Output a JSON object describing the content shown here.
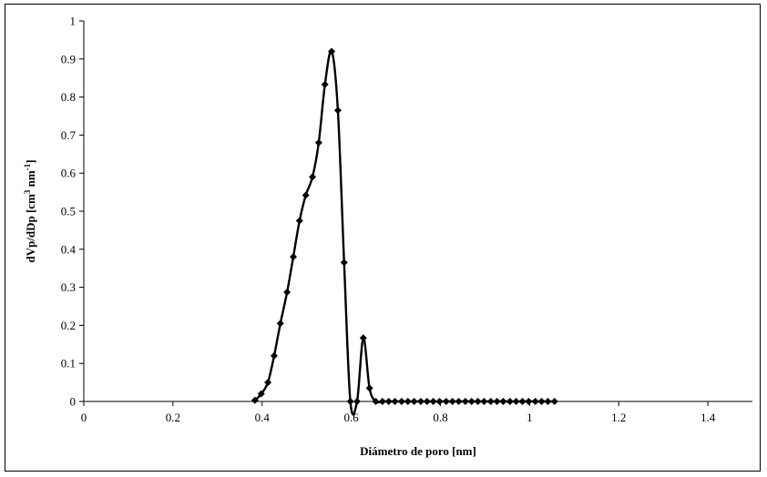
{
  "chart_data": {
    "type": "scatter",
    "title": "",
    "xlabel": "Diámetro de poro [nm]",
    "ylabel": {
      "main": "dVp/dDp [cm",
      "sup1": "3",
      "mid": " nm",
      "sup2": "-1",
      "end": "]"
    },
    "xlim": [
      0,
      1.5
    ],
    "ylim": [
      0,
      1
    ],
    "x_ticks": [
      "0",
      "0.2",
      "0.4",
      "0.6",
      "0.8",
      "1",
      "1.2",
      "1.4"
    ],
    "x_tick_values": [
      0,
      0.2,
      0.4,
      0.6,
      0.8,
      1.0,
      1.2,
      1.4
    ],
    "y_ticks": [
      "0",
      "0.1",
      "0.2",
      "0.3",
      "0.4",
      "0.5",
      "0.6",
      "0.7",
      "0.8",
      "0.9",
      "1"
    ],
    "y_tick_values": [
      0,
      0.1,
      0.2,
      0.3,
      0.4,
      0.5,
      0.6,
      0.7,
      0.8,
      0.9,
      1.0
    ],
    "grid": false,
    "legend": "none",
    "series": [
      {
        "marker": "diamond",
        "line": "smooth",
        "color": "#000000",
        "x": [
          0.384,
          0.398,
          0.413,
          0.427,
          0.441,
          0.456,
          0.47,
          0.484,
          0.498,
          0.513,
          0.527,
          0.541,
          0.556,
          0.57,
          0.584,
          0.598,
          0.613,
          0.627,
          0.641,
          0.655,
          0.67,
          0.684,
          0.698,
          0.713,
          0.727,
          0.741,
          0.756,
          0.77,
          0.784,
          0.798,
          0.813,
          0.827,
          0.841,
          0.856,
          0.87,
          0.884,
          0.898,
          0.913,
          0.927,
          0.941,
          0.956,
          0.97,
          0.984,
          0.998,
          1.013,
          1.027,
          1.041,
          1.056
        ],
        "y": [
          0.003,
          0.02,
          0.05,
          0.12,
          0.205,
          0.287,
          0.38,
          0.475,
          0.542,
          0.59,
          0.68,
          0.833,
          0.92,
          0.765,
          0.365,
          0.0,
          0.0,
          0.167,
          0.035,
          0.0,
          0.0,
          0.0,
          0.0,
          0.0,
          0.0,
          0.0,
          0.0,
          0.0,
          0.0,
          0.0,
          0.0,
          0.0,
          0.0,
          0.0,
          0.0,
          0.0,
          0.0,
          0.0,
          0.0,
          0.0,
          0.0,
          0.0,
          0.0,
          0.0,
          0.0,
          0.0,
          0.0,
          0.0
        ]
      }
    ]
  }
}
